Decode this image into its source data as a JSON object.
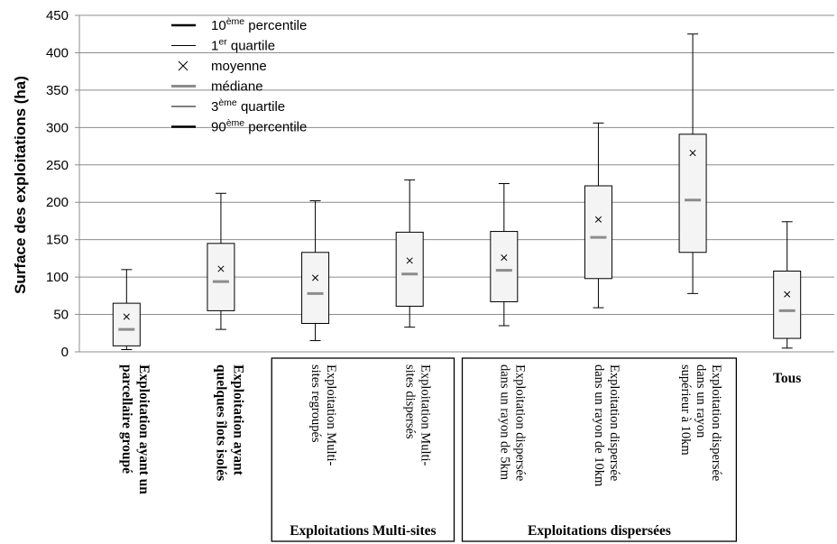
{
  "chart_data": {
    "type": "boxplot",
    "ylabel": "Surface des exploitations (ha)",
    "ylim": [
      0,
      450
    ],
    "yticks": [
      0,
      50,
      100,
      150,
      200,
      250,
      300,
      350,
      400,
      450
    ],
    "grid": "horizontal",
    "legend_position": "top-left",
    "legend": [
      {
        "key": "p10",
        "base": "10",
        "sup": "ème",
        "rest": " percentile",
        "symbol": "thick-line"
      },
      {
        "key": "q1",
        "base": "1",
        "sup": "er",
        "rest": " quartile",
        "symbol": "thin-line"
      },
      {
        "key": "mean",
        "base": "moyenne",
        "sup": "",
        "rest": "",
        "symbol": "cross"
      },
      {
        "key": "median",
        "base": "médiane",
        "sup": "",
        "rest": "",
        "symbol": "gray-line"
      },
      {
        "key": "q3",
        "base": "3",
        "sup": "ème",
        "rest": " quartile",
        "symbol": "thin-line"
      },
      {
        "key": "p90",
        "base": "90",
        "sup": "ème",
        "rest": " percentile",
        "symbol": "thick-line"
      }
    ],
    "categories": [
      {
        "lines": [
          "Exploitation ayant un",
          "parcellaire groupé"
        ],
        "bold": true,
        "p10": 3,
        "q1": 8,
        "median": 30,
        "mean": 47,
        "q3": 65,
        "p90": 110
      },
      {
        "lines": [
          "Exploitation ayant",
          "quelques îlots isolés"
        ],
        "bold": true,
        "p10": 30,
        "q1": 55,
        "median": 94,
        "mean": 111,
        "q3": 145,
        "p90": 212
      },
      {
        "lines": [
          "Exploitation  Multi-",
          "sites regroupés"
        ],
        "bold": false,
        "p10": 15,
        "q1": 38,
        "median": 78,
        "mean": 99,
        "q3": 133,
        "p90": 202
      },
      {
        "lines": [
          "Exploitation  Multi-",
          "sites dispersés"
        ],
        "bold": false,
        "p10": 33,
        "q1": 61,
        "median": 104,
        "mean": 122,
        "q3": 160,
        "p90": 230
      },
      {
        "lines": [
          "Exploitation  dispersée",
          "dans un rayon de 5km"
        ],
        "bold": false,
        "p10": 35,
        "q1": 67,
        "median": 109,
        "mean": 126,
        "q3": 161,
        "p90": 225
      },
      {
        "lines": [
          "Exploitation  dispersée",
          "dans un rayon  de 10km"
        ],
        "bold": false,
        "p10": 59,
        "q1": 98,
        "median": 153,
        "mean": 177,
        "q3": 222,
        "p90": 306
      },
      {
        "lines": [
          "Exploitation  dispersée",
          "dans un rayon",
          "supérieur  à 10km"
        ],
        "bold": false,
        "p10": 78,
        "q1": 133,
        "median": 203,
        "mean": 266,
        "q3": 291,
        "p90": 425
      },
      {
        "lines": [
          "Tous"
        ],
        "bold": true,
        "p10": 5,
        "q1": 18,
        "median": 55,
        "mean": 77,
        "q3": 108,
        "p90": 174
      }
    ],
    "groups": [
      {
        "label": "Exploitations Multi-sites",
        "members": [
          2,
          3
        ]
      },
      {
        "label": "Exploitations dispersées",
        "members": [
          4,
          5,
          6
        ]
      }
    ]
  }
}
